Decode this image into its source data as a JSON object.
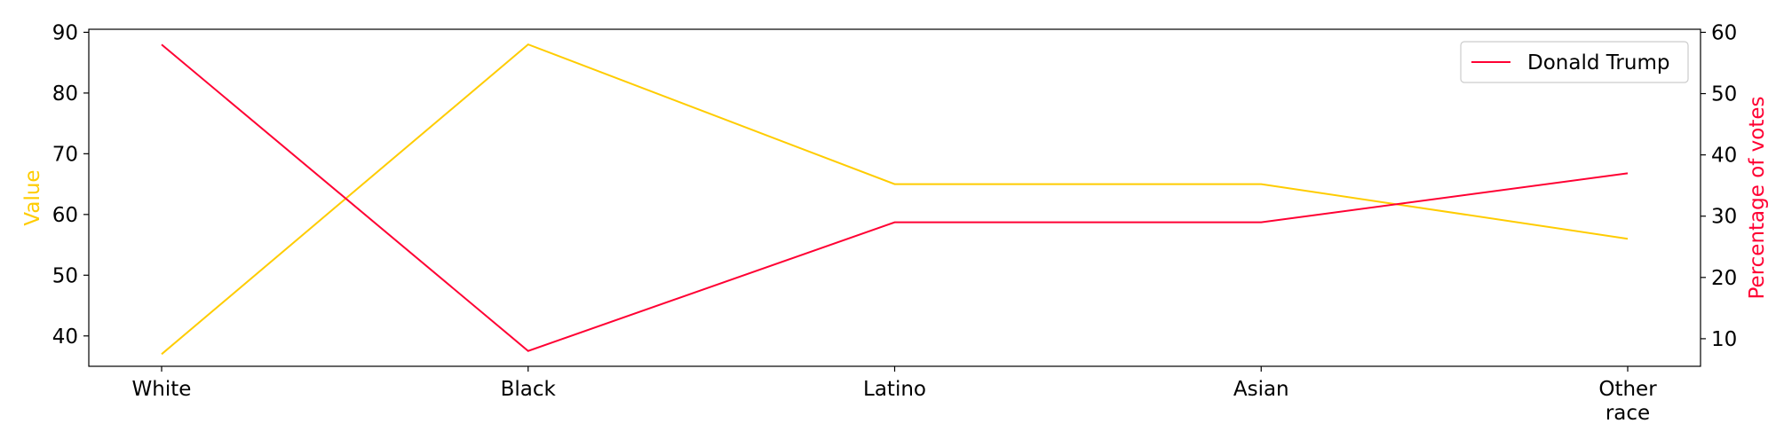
{
  "chart_data": {
    "type": "line",
    "categories": [
      "White",
      "Black",
      "Latino",
      "Asian",
      "Other race"
    ],
    "category_lines": [
      [
        "White"
      ],
      [
        "Black"
      ],
      [
        "Latino"
      ],
      [
        "Asian"
      ],
      [
        "Other",
        "race"
      ]
    ],
    "xlabel": "",
    "left_axis": {
      "label": "Value",
      "color": "#ffcc00",
      "ylim": [
        35,
        90.5
      ],
      "ticks": [
        40,
        50,
        60,
        70,
        80,
        90
      ]
    },
    "right_axis": {
      "label": "Percentage of votes",
      "color": "#ff0033",
      "ylim": [
        5.5,
        60.5
      ],
      "ticks": [
        10,
        20,
        30,
        40,
        50,
        60
      ]
    },
    "series": [
      {
        "name": "",
        "axis": "left",
        "color": "#ffcc00",
        "values": [
          37,
          88,
          65,
          65,
          56
        ]
      },
      {
        "name": "Donald Trump",
        "axis": "right",
        "color": "#ff0033",
        "values": [
          58,
          8,
          29,
          29,
          37
        ]
      }
    ],
    "legend": {
      "position": "top-right",
      "entries": [
        "Donald Trump"
      ]
    },
    "grid": false
  }
}
